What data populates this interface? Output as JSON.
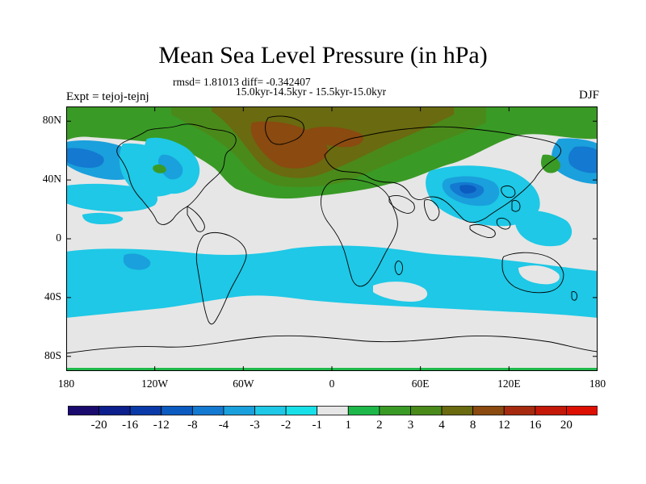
{
  "title": "Mean Sea Level Pressure (in hPa)",
  "stats_line": "rmsd= 1.81013 diff= -0.342407",
  "period_line": "15.0kyr-14.5kyr - 15.5kyr-15.0kyr",
  "experiment_label": "Expt = tejoj-tejnj",
  "season_label": "DJF",
  "map": {
    "projection": "cylindrical-equidistant",
    "lon_range": [
      -180,
      180
    ],
    "lat_range": [
      -90,
      90
    ],
    "lat_ticks": [
      {
        "value": 80,
        "label": "80N"
      },
      {
        "value": 40,
        "label": "40N"
      },
      {
        "value": 0,
        "label": "0"
      },
      {
        "value": -40,
        "label": "40S"
      },
      {
        "value": -80,
        "label": "80S"
      }
    ],
    "lon_ticks": [
      {
        "value": -180,
        "label": "180"
      },
      {
        "value": -120,
        "label": "120W"
      },
      {
        "value": -60,
        "label": "60W"
      },
      {
        "value": 0,
        "label": "0"
      },
      {
        "value": 60,
        "label": "60E"
      },
      {
        "value": 120,
        "label": "120E"
      },
      {
        "value": 180,
        "label": "180"
      }
    ],
    "background_color": "#e6e6e6"
  },
  "colorbar": {
    "labels": [
      "-20",
      "-16",
      "-12",
      "-8",
      "-4",
      "-3",
      "-2",
      "-1",
      "1",
      "2",
      "3",
      "4",
      "8",
      "12",
      "16",
      "20"
    ],
    "colors": [
      "#1a0a6e",
      "#0d1f8c",
      "#0a3aa8",
      "#0c5bc0",
      "#1479d0",
      "#1aa0dc",
      "#1ec8e6",
      "#18e0e8",
      "#e6e6e6",
      "#1eb84a",
      "#3a9a26",
      "#4a8a1a",
      "#6a6a10",
      "#8a4a10",
      "#a62a10",
      "#c41808",
      "#de1004"
    ]
  }
}
